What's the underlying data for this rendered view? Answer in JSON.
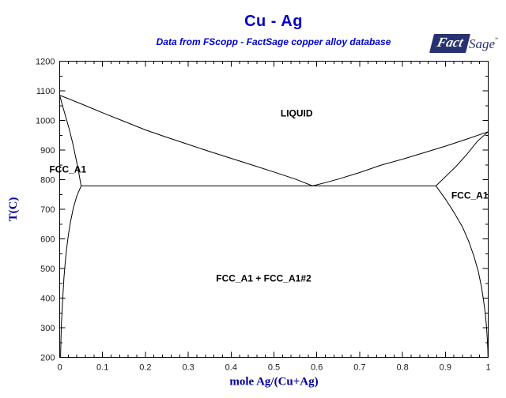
{
  "header": {
    "title": "Cu - Ag",
    "subtitle": "Data from FScopp - FactSage copper alloy database",
    "title_color": "#0000CC"
  },
  "logo": {
    "fact": "Fact",
    "sage": "Sage",
    "mark": "”",
    "navy": "#283271"
  },
  "chart_data": {
    "type": "line",
    "title": "Cu - Ag",
    "subtitle": "Data from FScopp - FactSage copper alloy database",
    "xlabel": "mole Ag/(Cu+Ag)",
    "ylabel": "T(C)",
    "xlim": [
      0,
      1
    ],
    "ylim": [
      200,
      1200
    ],
    "grid": false,
    "legend": "none",
    "axis_color": "#000000",
    "curve_color": "#000000",
    "tick_label_color": "#1a1a1a",
    "axis_title_color": "#000099",
    "x_ticks": {
      "values": [
        0,
        0.1,
        0.2,
        0.3,
        0.4,
        0.5,
        0.6,
        0.7,
        0.8,
        0.9,
        1
      ],
      "labels": [
        "0",
        "0.1",
        "0.2",
        "0.3",
        "0.4",
        "0.5",
        "0.6",
        "0.7",
        "0.8",
        "0.9",
        "1"
      ],
      "minor_step": 0.02
    },
    "y_ticks": {
      "values": [
        200,
        300,
        400,
        500,
        600,
        700,
        800,
        900,
        1000,
        1100,
        1200
      ],
      "labels": [
        "200",
        "300",
        "400",
        "500",
        "600",
        "700",
        "800",
        "900",
        "1000",
        "1100",
        "1200"
      ],
      "minor_step": 50
    },
    "special_points": {
      "Cu_melting_C": 1085,
      "Ag_melting_C": 962,
      "eutectic": {
        "x": 0.59,
        "T": 779
      },
      "fcc_solubility_limits_at_eutectic": {
        "left_x": 0.05,
        "right_x": 0.878
      }
    },
    "series": [
      {
        "name": "liquidus-Cu-side",
        "points": [
          [
            0,
            1085
          ],
          [
            0.05,
            1056
          ],
          [
            0.1,
            1026
          ],
          [
            0.15,
            997
          ],
          [
            0.2,
            968
          ],
          [
            0.25,
            943
          ],
          [
            0.3,
            919
          ],
          [
            0.35,
            895
          ],
          [
            0.4,
            872
          ],
          [
            0.45,
            849
          ],
          [
            0.5,
            826
          ],
          [
            0.55,
            802
          ],
          [
            0.59,
            779
          ]
        ]
      },
      {
        "name": "liquidus-Ag-side",
        "points": [
          [
            0.59,
            779
          ],
          [
            0.62,
            790
          ],
          [
            0.65,
            802
          ],
          [
            0.7,
            824
          ],
          [
            0.75,
            849
          ],
          [
            0.8,
            869
          ],
          [
            0.85,
            891
          ],
          [
            0.9,
            913
          ],
          [
            0.95,
            937
          ],
          [
            1,
            962
          ]
        ]
      },
      {
        "name": "solidus-Cu-side",
        "points": [
          [
            0,
            1085
          ],
          [
            0.008,
            1043
          ],
          [
            0.015,
            1008
          ],
          [
            0.022,
            972
          ],
          [
            0.03,
            925
          ],
          [
            0.036,
            885
          ],
          [
            0.043,
            836
          ],
          [
            0.05,
            779
          ]
        ]
      },
      {
        "name": "solidus-Ag-side",
        "points": [
          [
            1,
            962
          ],
          [
            0.975,
            930
          ],
          [
            0.95,
            885
          ],
          [
            0.925,
            845
          ],
          [
            0.9,
            810
          ],
          [
            0.878,
            779
          ]
        ]
      },
      {
        "name": "eutectic-line",
        "points": [
          [
            0.05,
            779
          ],
          [
            0.878,
            779
          ]
        ]
      },
      {
        "name": "solvus-Cu-side",
        "points": [
          [
            0.05,
            779
          ],
          [
            0.04,
            745
          ],
          [
            0.032,
            705
          ],
          [
            0.025,
            655
          ],
          [
            0.02,
            610
          ],
          [
            0.016,
            565
          ],
          [
            0.013,
            520
          ],
          [
            0.01,
            470
          ],
          [
            0.008,
            420
          ],
          [
            0.006,
            370
          ],
          [
            0.004,
            315
          ],
          [
            0.003,
            260
          ],
          [
            0.002,
            200
          ]
        ]
      },
      {
        "name": "solvus-Ag-side",
        "points": [
          [
            0.878,
            779
          ],
          [
            0.9,
            735
          ],
          [
            0.92,
            690
          ],
          [
            0.94,
            640
          ],
          [
            0.955,
            590
          ],
          [
            0.967,
            540
          ],
          [
            0.977,
            490
          ],
          [
            0.984,
            440
          ],
          [
            0.989,
            395
          ],
          [
            0.993,
            350
          ],
          [
            0.996,
            305
          ],
          [
            0.998,
            260
          ],
          [
            0.999,
            225
          ],
          [
            0.9995,
            200
          ]
        ]
      }
    ],
    "region_labels": [
      {
        "text": "LIQUID",
        "x": 0.553,
        "T": 1024
      },
      {
        "text": "FCC_A1",
        "x": 0.019,
        "T": 835
      },
      {
        "text": "FCC_A1",
        "x": 0.957,
        "T": 747
      },
      {
        "text": "FCC_A1 + FCC_A1#2",
        "x": 0.476,
        "T": 467
      }
    ]
  }
}
